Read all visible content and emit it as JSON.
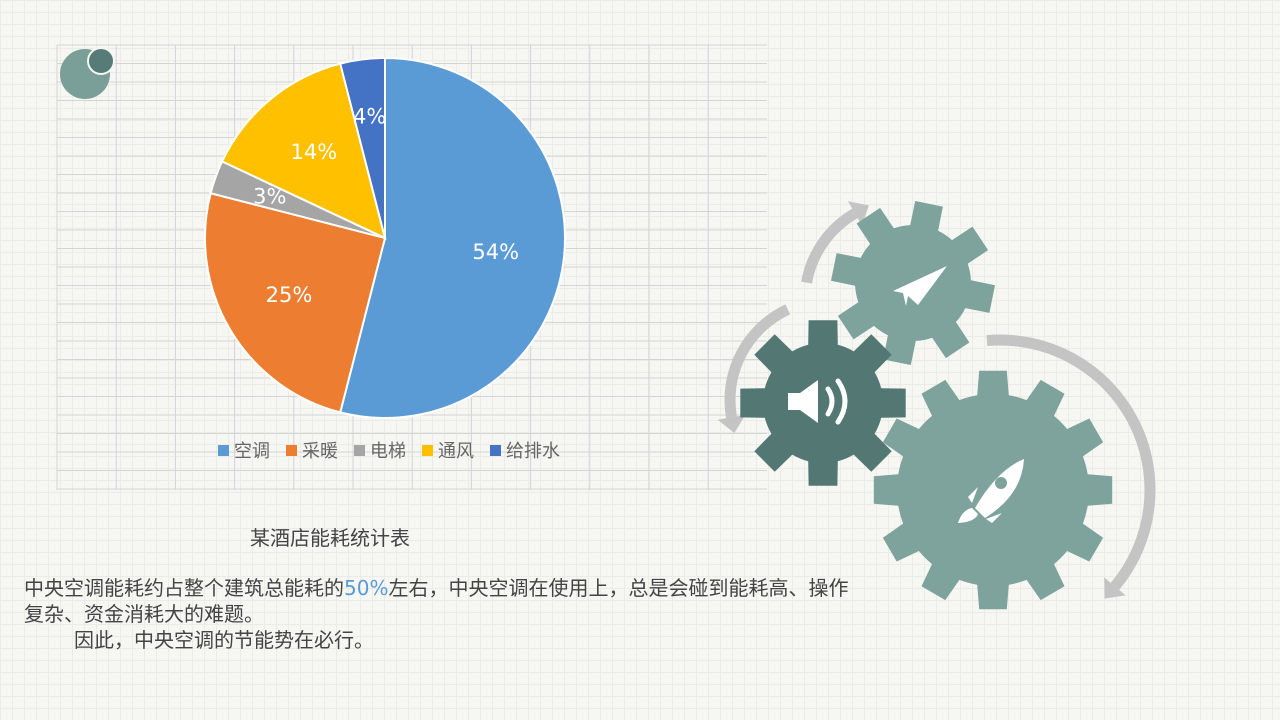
{
  "chart_data": {
    "type": "pie",
    "title": "某酒店能耗统计表",
    "categories": [
      "空调",
      "采暖",
      "电梯",
      "通风",
      "给排水"
    ],
    "values": [
      54,
      25,
      3,
      14,
      4
    ],
    "labels": [
      "54%",
      "25%",
      "3%",
      "14%",
      "4%"
    ],
    "colors": [
      "#5b9bd5",
      "#ed7d31",
      "#a5a5a5",
      "#ffc000",
      "#4472c4"
    ],
    "start_angle": "12 o'clock, clockwise",
    "legend": "bottom"
  },
  "text": {
    "line1_a": "中央空调能耗约占整个建筑总能耗的",
    "line1_highlight": "50%",
    "line1_b": "左右，中央空调在使用上，总是会碰到能耗高、操作复杂、资金消耗大的难题。",
    "line2": "因此，中央空调的节能势在必行。"
  },
  "icons": [
    "paper-plane-icon",
    "speaker-icon",
    "rocket-icon"
  ],
  "colors": {
    "gear_light": "#7da39c",
    "gear_dark": "#537874",
    "arrow": "#c4c4c4",
    "highlight": "#5b9bd5"
  }
}
